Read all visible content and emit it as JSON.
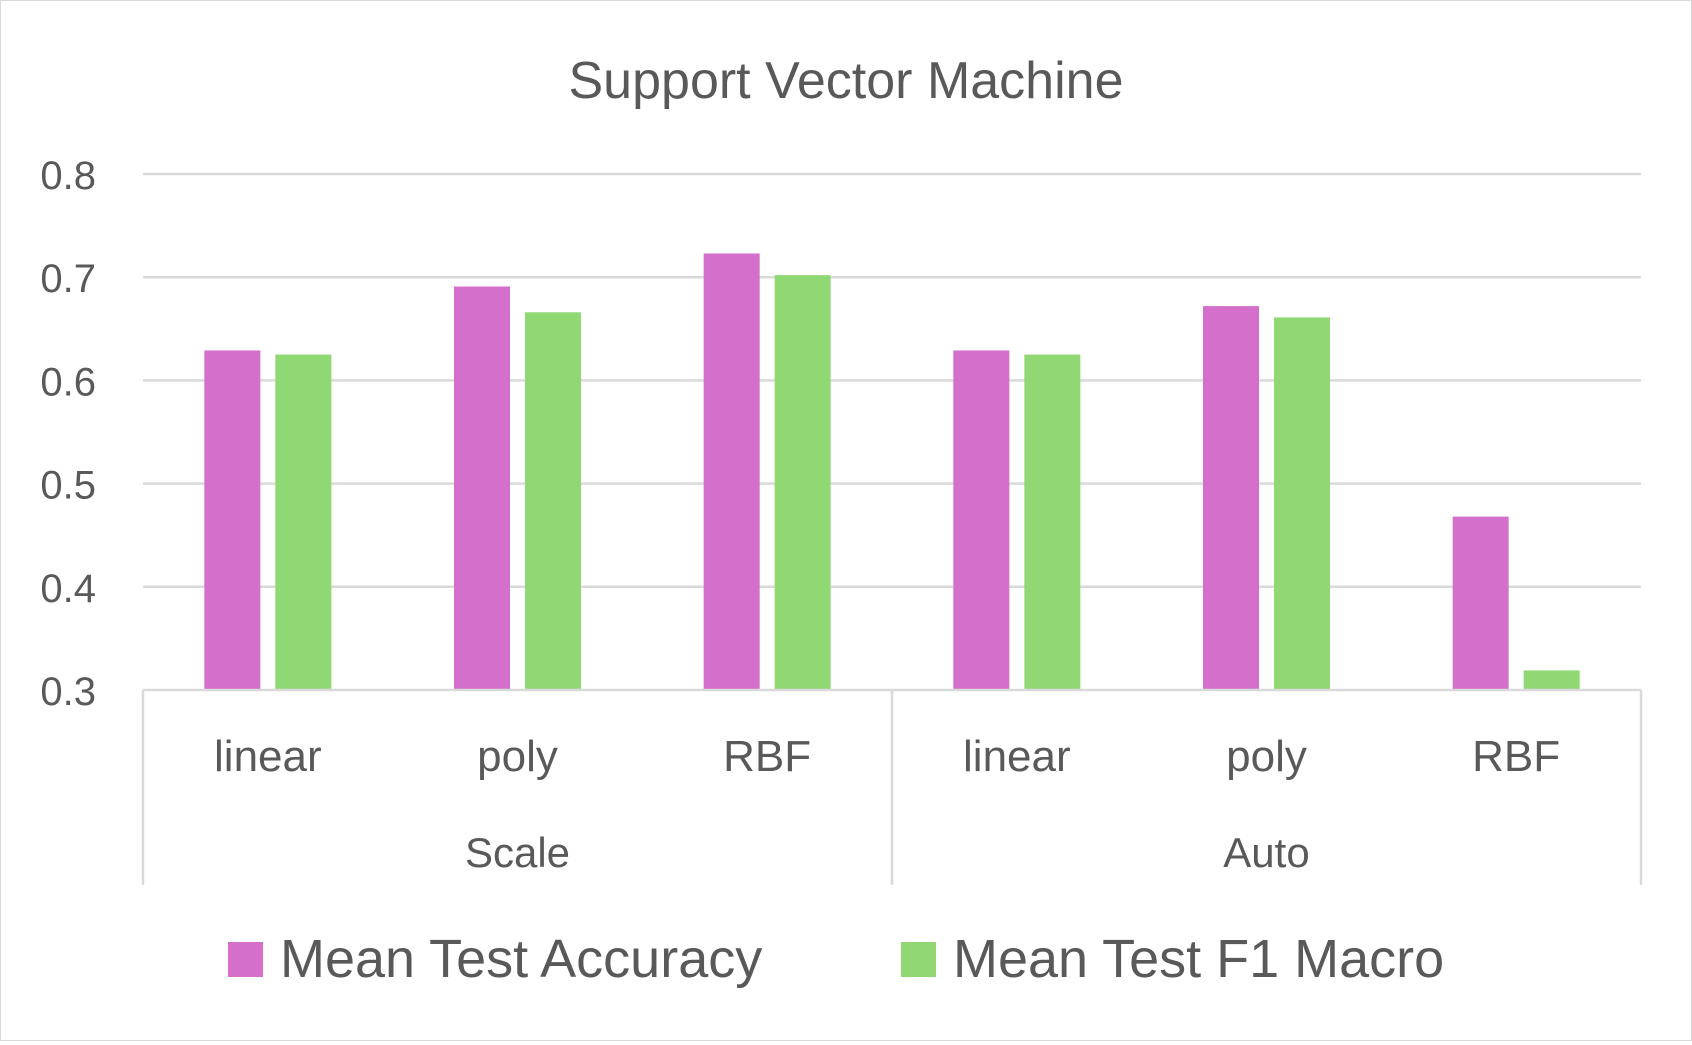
{
  "chart_data": {
    "type": "bar",
    "title": "Support Vector Machine",
    "xlabel": "",
    "ylabel": "",
    "ylim": [
      0.3,
      0.8
    ],
    "yticks": [
      "0.8",
      "0.7",
      "0.6",
      "0.5",
      "0.4",
      "0.3"
    ],
    "grid": true,
    "legend_position": "bottom",
    "groups": [
      {
        "label": "Scale",
        "categories": [
          "linear",
          "poly",
          "RBF"
        ]
      },
      {
        "label": "Auto",
        "categories": [
          "linear",
          "poly",
          "RBF"
        ]
      }
    ],
    "series": [
      {
        "name": "Mean Test Accuracy",
        "color": "#D46FCB",
        "values": [
          0.629,
          0.691,
          0.723,
          0.629,
          0.672,
          0.468
        ]
      },
      {
        "name": "Mean Test F1 Macro",
        "color": "#8FD873",
        "values": [
          0.625,
          0.666,
          0.702,
          0.625,
          0.661,
          0.319
        ]
      }
    ]
  }
}
